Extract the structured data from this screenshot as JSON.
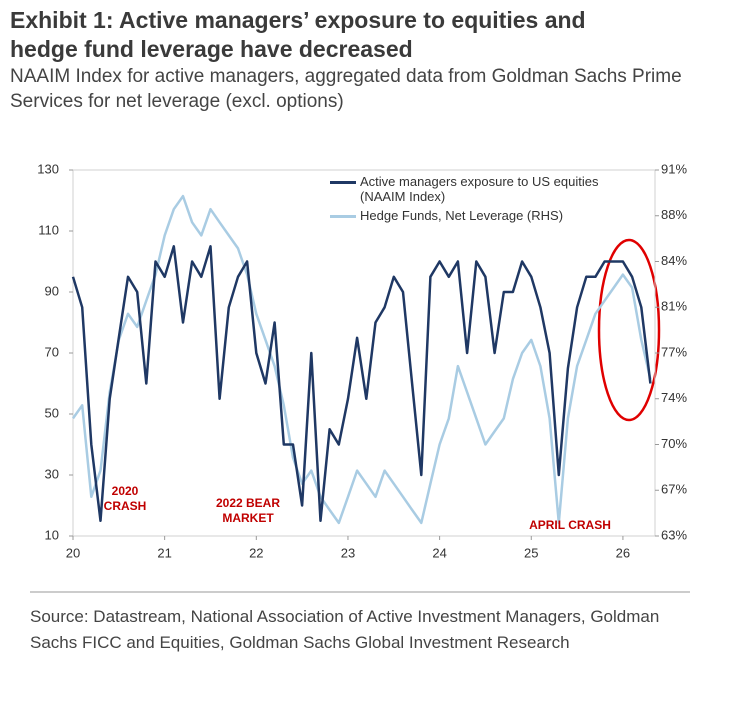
{
  "chart_data": {
    "type": "line",
    "title": "Exhibit 1: Active managers’ exposure to equities and hedge fund leverage have decreased",
    "subtitle": "NAAIM Index for active managers, aggregated data from Goldman Sachs Prime Services for net leverage (excl. options)",
    "source": "Source: Datastream, National Association of Active Investment Managers, Goldman Sachs FICC and Equities, Goldman Sachs Global Investment Research",
    "annotations": [
      "2020 CRASH",
      "2022 BEAR MARKET",
      "APRIL CRASH"
    ],
    "x": [
      20.0,
      20.1,
      20.2,
      20.3,
      20.4,
      20.5,
      20.6,
      20.7,
      20.8,
      20.9,
      21.0,
      21.1,
      21.2,
      21.3,
      21.4,
      21.5,
      21.6,
      21.7,
      21.8,
      21.9,
      22.0,
      22.1,
      22.2,
      22.3,
      22.4,
      22.5,
      22.6,
      22.7,
      22.8,
      22.9,
      23.0,
      23.1,
      23.2,
      23.3,
      23.4,
      23.5,
      23.6,
      23.7,
      23.8,
      23.9,
      24.0,
      24.1,
      24.2,
      24.3,
      24.4,
      24.5,
      24.6,
      24.7,
      24.8,
      24.9,
      25.0,
      25.1,
      25.2,
      25.3,
      25.4,
      25.5,
      25.6,
      25.7,
      25.8,
      25.9,
      26.0,
      26.1,
      26.2,
      26.3
    ],
    "series": [
      {
        "name": "Active managers exposure to US equities (NAAIM Index)",
        "color": "#1f3864",
        "values": [
          95,
          85,
          40,
          15,
          55,
          75,
          95,
          90,
          60,
          100,
          95,
          105,
          80,
          100,
          95,
          105,
          55,
          85,
          95,
          100,
          70,
          60,
          80,
          40,
          40,
          20,
          70,
          15,
          45,
          40,
          55,
          75,
          55,
          80,
          85,
          95,
          90,
          60,
          30,
          95,
          100,
          95,
          100,
          70,
          100,
          95,
          70,
          90,
          90,
          100,
          95,
          85,
          70,
          30,
          65,
          85,
          95,
          95,
          100,
          100,
          100,
          95,
          85,
          60
        ]
      },
      {
        "name": "Hedge Funds, Net Leverage (RHS)",
        "color": "#a9cce3",
        "axis": "y2",
        "values": [
          72,
          73,
          66,
          68,
          74,
          78,
          80,
          79,
          81,
          83,
          86,
          88,
          89,
          87,
          86,
          88,
          87,
          86,
          85,
          83,
          80,
          78,
          76,
          73,
          69,
          67,
          68,
          66,
          65,
          64,
          66,
          68,
          67,
          66,
          68,
          67,
          66,
          65,
          64,
          67,
          70,
          72,
          76,
          74,
          72,
          70,
          71,
          72,
          75,
          77,
          78,
          76,
          72,
          64,
          72,
          76,
          78,
          80,
          81,
          82,
          83,
          82,
          78,
          75
        ]
      }
    ],
    "xlim": [
      20,
      26.35
    ],
    "xticks": [
      20,
      21,
      22,
      23,
      24,
      25,
      26
    ],
    "ylim": [
      10,
      130
    ],
    "yticks": [
      10,
      30,
      50,
      70,
      90,
      110,
      130
    ],
    "y2lim": [
      63,
      91
    ],
    "y2ticks": [
      {
        "value": 63,
        "label": "63%"
      },
      {
        "value": 66.5,
        "label": "67%"
      },
      {
        "value": 70,
        "label": "70%"
      },
      {
        "value": 73.5,
        "label": "74%"
      },
      {
        "value": 77,
        "label": "77%"
      },
      {
        "value": 80.5,
        "label": "81%"
      },
      {
        "value": 84,
        "label": "84%"
      },
      {
        "value": 87.5,
        "label": "88%"
      },
      {
        "value": 91,
        "label": "91%"
      }
    ],
    "legend": "top-right"
  }
}
